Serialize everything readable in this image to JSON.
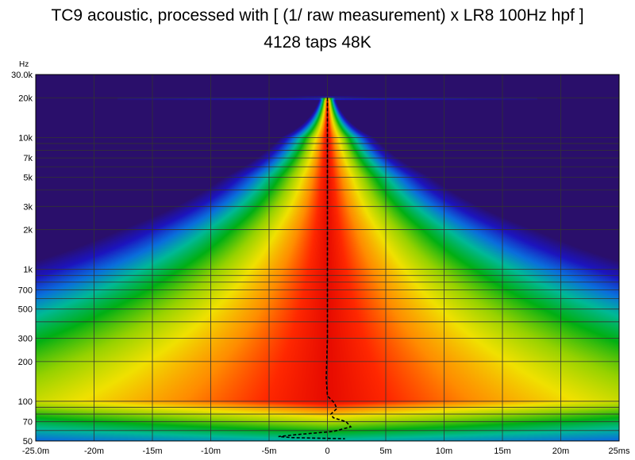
{
  "title_line1": "TC9 acoustic, processed with [ (1/ raw measurement) x LR8 100Hz hpf ]",
  "title_line2": "4128 taps 48K",
  "y_unit": "Hz",
  "colors": {
    "background_low": "#2a0f6b",
    "grid": "#333333",
    "trace": "#000000"
  },
  "chart_data": {
    "type": "heatmap",
    "subtype": "wavelet spectrogram",
    "x_range": [
      -25,
      25
    ],
    "x_unit": "ms",
    "y_range_hz": [
      50,
      30000
    ],
    "y_scale": "log",
    "grid": true,
    "x_ticks": [
      {
        "v": -25,
        "label": "-25.0m"
      },
      {
        "v": -20,
        "label": "-20m"
      },
      {
        "v": -15,
        "label": "-15m"
      },
      {
        "v": -10,
        "label": "-10m"
      },
      {
        "v": -5,
        "label": "-5m"
      },
      {
        "v": 0,
        "label": "0"
      },
      {
        "v": 5,
        "label": "5m"
      },
      {
        "v": 10,
        "label": "10m"
      },
      {
        "v": 15,
        "label": "15m"
      },
      {
        "v": 20,
        "label": "20m"
      },
      {
        "v": 25,
        "label": "25ms"
      }
    ],
    "y_ticks": [
      {
        "v": 30000,
        "label": "30.0k"
      },
      {
        "v": 20000,
        "label": "20k"
      },
      {
        "v": 10000,
        "label": "10k"
      },
      {
        "v": 7000,
        "label": "7k"
      },
      {
        "v": 5000,
        "label": "5k"
      },
      {
        "v": 3000,
        "label": "3k"
      },
      {
        "v": 2000,
        "label": "2k"
      },
      {
        "v": 1000,
        "label": "1k"
      },
      {
        "v": 700,
        "label": "700"
      },
      {
        "v": 500,
        "label": "500"
      },
      {
        "v": 300,
        "label": "300"
      },
      {
        "v": 200,
        "label": "200"
      },
      {
        "v": 100,
        "label": "100"
      },
      {
        "v": 70,
        "label": "70"
      },
      {
        "v": 50,
        "label": "50"
      }
    ],
    "grid_minor_hz": [
      40000,
      9000,
      8000,
      6000,
      4000,
      900,
      800,
      600,
      400,
      90,
      80,
      60
    ],
    "energy_halfwidth_ms": [
      {
        "hz": 20000,
        "ms": 0.4
      },
      {
        "hz": 10000,
        "ms": 2.5
      },
      {
        "hz": 5000,
        "ms": 5.5
      },
      {
        "hz": 2000,
        "ms": 11
      },
      {
        "hz": 1000,
        "ms": 17
      },
      {
        "hz": 500,
        "ms": 25
      },
      {
        "hz": 200,
        "ms": 40
      },
      {
        "hz": 100,
        "ms": 55
      },
      {
        "hz": 70,
        "ms": 55
      },
      {
        "hz": 50,
        "ms": 55
      }
    ],
    "upper_cutoff_hz": 20000,
    "group_delay_trace": [
      {
        "hz": 20000,
        "ms": 0.0
      },
      {
        "hz": 1000,
        "ms": 0.0
      },
      {
        "hz": 300,
        "ms": 0.0
      },
      {
        "hz": 150,
        "ms": -0.1
      },
      {
        "hz": 110,
        "ms": 0.0
      },
      {
        "hz": 97,
        "ms": 0.6
      },
      {
        "hz": 88,
        "ms": 0.8
      },
      {
        "hz": 80,
        "ms": 0.3
      },
      {
        "hz": 75,
        "ms": 0.5
      },
      {
        "hz": 70,
        "ms": 1.6
      },
      {
        "hz": 64,
        "ms": 2.0
      },
      {
        "hz": 59,
        "ms": 0.5
      },
      {
        "hz": 56,
        "ms": -2.5
      },
      {
        "hz": 54,
        "ms": -4.2
      },
      {
        "hz": 53,
        "ms": -3.0
      },
      {
        "hz": 52,
        "ms": 1.5
      }
    ]
  }
}
